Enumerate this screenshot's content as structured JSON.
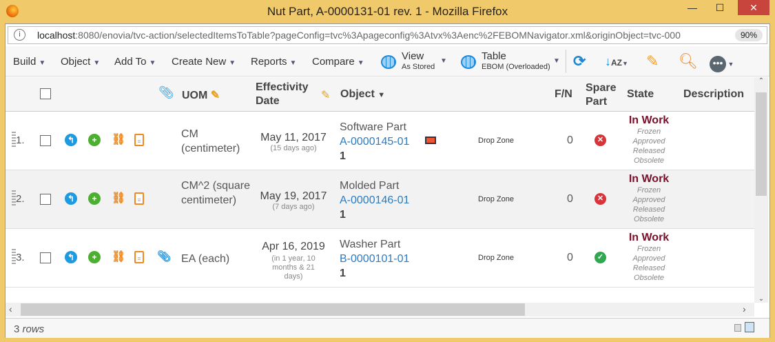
{
  "window": {
    "title": "Nut Part, A-0000131-01 rev. 1 - Mozilla Firefox",
    "minimize": "—",
    "maximize": "☐",
    "close": "✕"
  },
  "urlbar": {
    "host": "localhost",
    "rest": ":8080/enovia/tvc-action/selectedItemsToTable?pageConfig=tvc%3Apageconfig%3Atvx%3Aenc%2FEBOMNavigator.xml&originObject=tvc-000",
    "zoom": "90%"
  },
  "toolbar": {
    "menus": [
      "Build",
      "Object",
      "Add To",
      "Create New",
      "Reports",
      "Compare"
    ],
    "view": {
      "label": "View",
      "value": "As Stored"
    },
    "table": {
      "label": "Table",
      "value": "EBOM (Overloaded)"
    },
    "icons": [
      "refresh-icon",
      "sort-az-icon",
      "edit-notepad-icon",
      "search-icon",
      "more-icon"
    ]
  },
  "columns": {
    "uom": "UOM",
    "effectivity": "Effectivity Date",
    "object": "Object",
    "fn": "F/N",
    "spare": "Spare Part",
    "state": "State",
    "description": "Description"
  },
  "rows": [
    {
      "num": "1.",
      "uom": "CM (centimeter)",
      "date": "May 11, 2017",
      "relative": "(15 days ago)",
      "type": "Software Part",
      "id": "A-0000145-01",
      "rev": "1",
      "dropzone": "Drop Zone",
      "fn": "0",
      "spare": false,
      "state": "In Work",
      "other_states": [
        "Frozen",
        "Approved",
        "Released",
        "Obsolete"
      ],
      "attachment": false
    },
    {
      "num": "2.",
      "uom": "CM^2 (square centimeter)",
      "date": "May 19, 2017",
      "relative": "(7 days ago)",
      "type": "Molded Part",
      "id": "A-0000146-01",
      "rev": "1",
      "dropzone": "Drop Zone",
      "fn": "0",
      "spare": false,
      "state": "In Work",
      "other_states": [
        "Frozen",
        "Approved",
        "Released",
        "Obsolete"
      ],
      "attachment": false
    },
    {
      "num": "3.",
      "uom": "EA (each)",
      "date": "Apr 16, 2019",
      "relative": "(in 1 year, 10 months & 21 days)",
      "type": "Washer Part",
      "id": "B-0000101-01",
      "rev": "1",
      "dropzone": "Drop Zone",
      "fn": "0",
      "spare": true,
      "state": "In Work",
      "other_states": [
        "Frozen",
        "Approved",
        "Released",
        "Obsolete"
      ],
      "attachment": true
    }
  ],
  "footer": {
    "count": "3",
    "unit": "rows"
  },
  "colors": {
    "state": "#7a0f2a",
    "link": "#2a7bc3",
    "frame": "#f0c96a"
  }
}
